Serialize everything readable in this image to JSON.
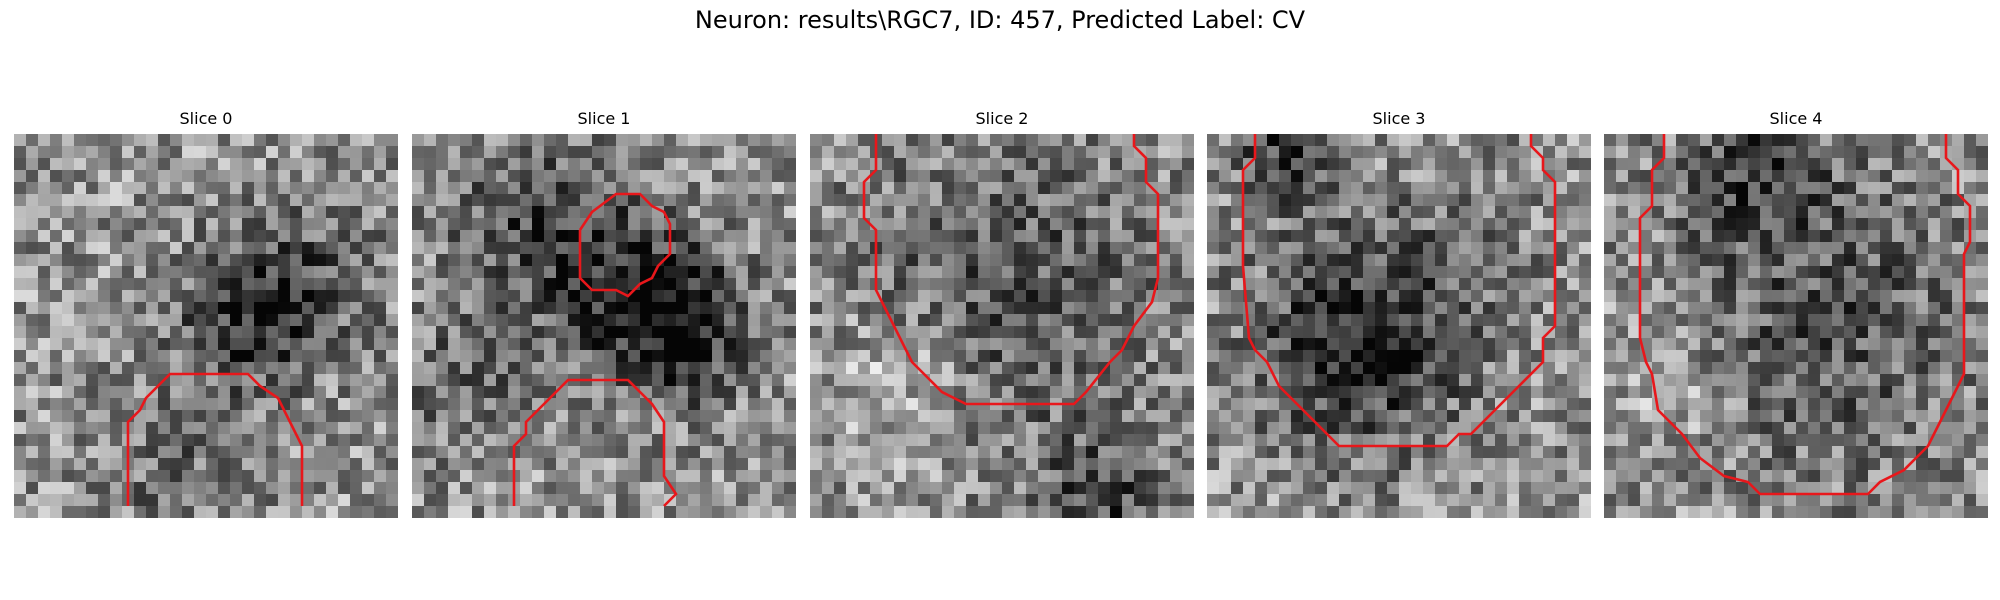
{
  "figure": {
    "title": "Neuron: results\\RGC7, ID: 457, Predicted Label: CV",
    "contour_color": "#e8171b"
  },
  "slices": [
    {
      "label": "Slice 0"
    },
    {
      "label": "Slice 1"
    },
    {
      "label": "Slice 2"
    },
    {
      "label": "Slice 3"
    },
    {
      "label": "Slice 4"
    }
  ]
}
